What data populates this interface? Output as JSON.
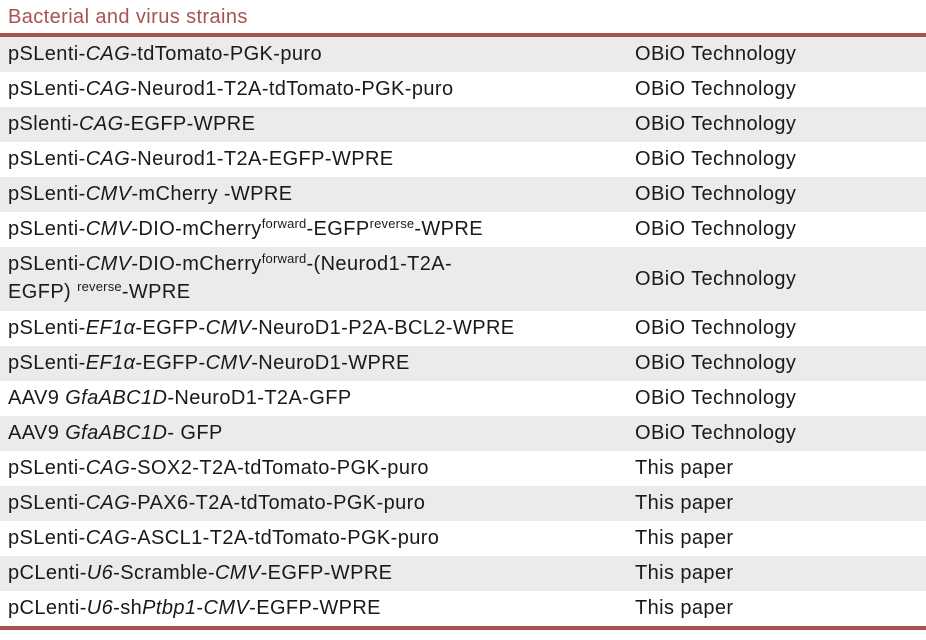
{
  "section": {
    "title": "Bacterial and virus strains"
  },
  "colors": {
    "accent_red": "#a85254",
    "row_alt": "#ebebeb",
    "text": "#1a1a1a"
  },
  "table": {
    "rows": [
      {
        "source": "OBiO Technology",
        "name": [
          {
            "t": "pSLenti-"
          },
          {
            "t": "CAG",
            "style": "i"
          },
          {
            "t": "-tdTomato-PGK-puro"
          }
        ]
      },
      {
        "source": "OBiO Technology",
        "name": [
          {
            "t": "pSLenti-"
          },
          {
            "t": "CAG",
            "style": "i"
          },
          {
            "t": "-Neurod1-T2A-tdTomato-PGK-puro"
          }
        ]
      },
      {
        "source": "OBiO Technology",
        "name": [
          {
            "t": "pSlenti-"
          },
          {
            "t": "CAG",
            "style": "i"
          },
          {
            "t": "-EGFP-WPRE"
          }
        ]
      },
      {
        "source": "OBiO Technology",
        "name": [
          {
            "t": "pSLenti-"
          },
          {
            "t": "CAG",
            "style": "i"
          },
          {
            "t": "-Neurod1-T2A-EGFP-WPRE"
          }
        ]
      },
      {
        "source": "OBiO Technology",
        "name": [
          {
            "t": "pSLenti-"
          },
          {
            "t": "CMV",
            "style": "i"
          },
          {
            "t": "-mCherry -WPRE"
          }
        ]
      },
      {
        "source": "OBiO Technology",
        "name": [
          {
            "t": "pSLenti-"
          },
          {
            "t": "CMV",
            "style": "i"
          },
          {
            "t": "-DIO-mCherry"
          },
          {
            "t": "forward",
            "style": "sup"
          },
          {
            "t": "-EGFP"
          },
          {
            "t": "reverse",
            "style": "sup"
          },
          {
            "t": "-WPRE"
          }
        ]
      },
      {
        "source": "OBiO Technology",
        "tall": true,
        "name": [
          {
            "t": "pSLenti-"
          },
          {
            "t": "CMV",
            "style": "i"
          },
          {
            "t": "-DIO-mCherry"
          },
          {
            "t": "forward",
            "style": "sup"
          },
          {
            "t": "-(Neurod1-T2A-"
          },
          {
            "style": "br"
          },
          {
            "t": "EGFP) "
          },
          {
            "t": "reverse",
            "style": "sup"
          },
          {
            "t": "-WPRE"
          }
        ]
      },
      {
        "source": "OBiO Technology",
        "name": [
          {
            "t": "pSLenti-"
          },
          {
            "t": "EF1α",
            "style": "i"
          },
          {
            "t": "-EGFP-"
          },
          {
            "t": "CMV",
            "style": "i"
          },
          {
            "t": "-NeuroD1-P2A-BCL2-WPRE"
          }
        ]
      },
      {
        "source": "OBiO Technology",
        "name": [
          {
            "t": "pSLenti-"
          },
          {
            "t": "EF1α",
            "style": "i"
          },
          {
            "t": "-EGFP-"
          },
          {
            "t": "CMV",
            "style": "i"
          },
          {
            "t": "-NeuroD1-WPRE"
          }
        ]
      },
      {
        "source": "OBiO Technology",
        "name": [
          {
            "t": "AAV9 "
          },
          {
            "t": "GfaABC1D",
            "style": "i"
          },
          {
            "t": "-NeuroD1-T2A-GFP"
          }
        ]
      },
      {
        "source": "OBiO Technology",
        "name": [
          {
            "t": "AAV9 "
          },
          {
            "t": "GfaABC1D",
            "style": "i"
          },
          {
            "t": "- GFP"
          }
        ]
      },
      {
        "source": "This paper",
        "name": [
          {
            "t": "pSLenti-"
          },
          {
            "t": "CAG",
            "style": "i"
          },
          {
            "t": "-SOX2-T2A-tdTomato-PGK-puro"
          }
        ]
      },
      {
        "source": "This paper",
        "name": [
          {
            "t": "pSLenti-"
          },
          {
            "t": "CAG",
            "style": "i"
          },
          {
            "t": "-PAX6-T2A-tdTomato-PGK-puro"
          }
        ]
      },
      {
        "source": "This paper",
        "name": [
          {
            "t": "pSLenti-"
          },
          {
            "t": "CAG",
            "style": "i"
          },
          {
            "t": "-ASCL1-T2A-tdTomato-PGK-puro"
          }
        ]
      },
      {
        "source": "This paper",
        "name": [
          {
            "t": "pCLenti-"
          },
          {
            "t": "U6",
            "style": "i"
          },
          {
            "t": "-Scramble-"
          },
          {
            "t": "CMV",
            "style": "i"
          },
          {
            "t": "-EGFP-WPRE"
          }
        ]
      },
      {
        "source": "This paper",
        "name": [
          {
            "t": "pCLenti-"
          },
          {
            "t": "U6",
            "style": "i"
          },
          {
            "t": "-sh"
          },
          {
            "t": "Ptbp1",
            "style": "i"
          },
          {
            "t": "-"
          },
          {
            "t": "CMV",
            "style": "i"
          },
          {
            "t": "-EGFP-WPRE"
          }
        ]
      }
    ]
  }
}
